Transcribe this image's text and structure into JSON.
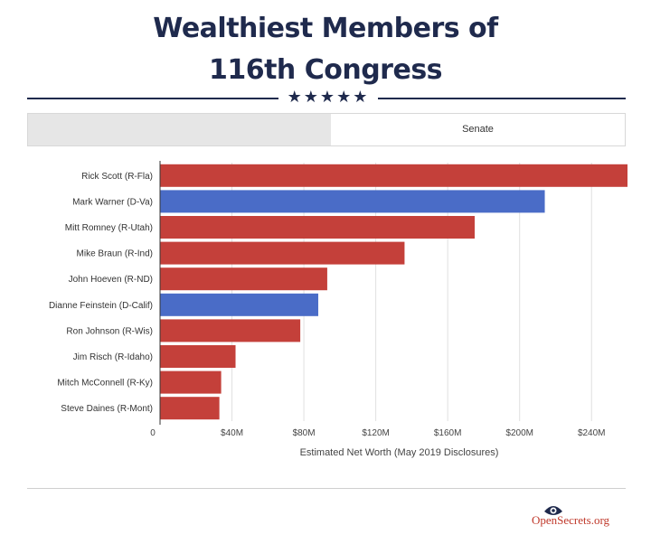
{
  "header": {
    "title_line1": "Wealthiest Members of",
    "title_line2": "116th Congress",
    "stars": "★★★★★"
  },
  "tabs": [
    {
      "label": "",
      "active": false
    },
    {
      "label": "Senate",
      "active": true
    }
  ],
  "colors": {
    "republican": "#c4403a",
    "democrat": "#4a6cc7",
    "title": "#1f2a4d",
    "grid": "#e0e0e0"
  },
  "chart_data": {
    "type": "bar",
    "orientation": "horizontal",
    "title": "Wealthiest Members of 116th Congress",
    "xlabel": "Estimated Net Worth (May 2019 Disclosures)",
    "ylabel": "",
    "xlim": [
      0,
      260
    ],
    "x_ticks": [
      0,
      40,
      80,
      120,
      160,
      200,
      240
    ],
    "x_tick_labels": [
      "0",
      "$40M",
      "$80M",
      "$120M",
      "$160M",
      "$200M",
      "$240M"
    ],
    "grid": true,
    "categories": [
      "Rick Scott (R-Fla)",
      "Mark Warner (D-Va)",
      "Mitt Romney (R-Utah)",
      "Mike Braun (R-Ind)",
      "John Hoeven (R-ND)",
      "Dianne Feinstein (D-Calif)",
      "Ron Johnson (R-Wis)",
      "Jim Risch (R-Idaho)",
      "Mitch McConnell (R-Ky)",
      "Steve Daines (R-Mont)"
    ],
    "values": [
      260,
      214,
      175,
      136,
      93,
      88,
      78,
      42,
      34,
      33
    ],
    "party": [
      "R",
      "D",
      "R",
      "R",
      "R",
      "D",
      "R",
      "R",
      "R",
      "R"
    ],
    "unit": "$M"
  },
  "footer": {
    "logo_text": "OpenSecrets.org",
    "logo_icon": "eye-icon"
  }
}
